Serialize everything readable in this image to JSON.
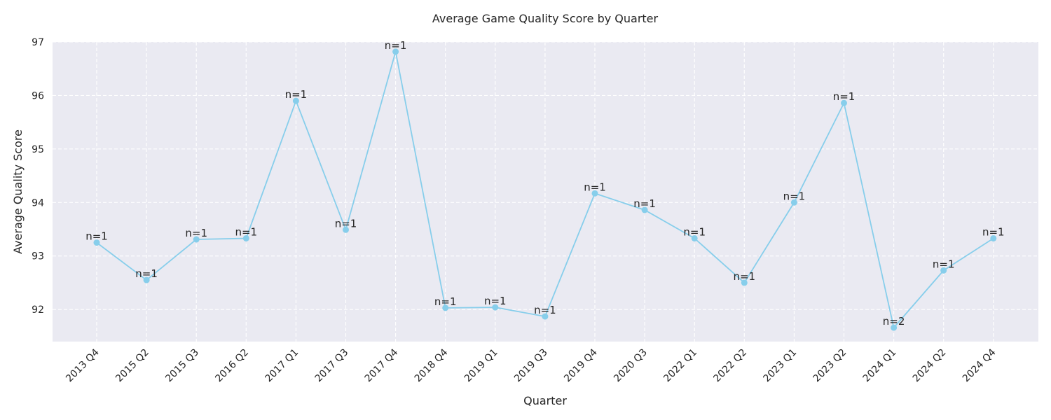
{
  "chart_data": {
    "type": "line",
    "title": "Average Game Quality Score by Quarter",
    "xlabel": "Quarter",
    "ylabel": "Average Quality Score",
    "ylim": [
      91.4,
      97.0
    ],
    "yticks": [
      92,
      93,
      94,
      95,
      96,
      97
    ],
    "grid": true,
    "line_color": "#87CEEB",
    "background_color": "#EAEAF2",
    "categories": [
      "2013 Q4",
      "2015 Q2",
      "2015 Q3",
      "2016 Q2",
      "2017 Q1",
      "2017 Q3",
      "2017 Q4",
      "2018 Q4",
      "2019 Q1",
      "2019 Q3",
      "2019 Q4",
      "2020 Q3",
      "2022 Q1",
      "2022 Q2",
      "2023 Q1",
      "2023 Q2",
      "2024 Q1",
      "2024 Q2",
      "2024 Q4"
    ],
    "values": [
      93.25,
      92.55,
      93.31,
      93.33,
      95.9,
      93.49,
      96.82,
      92.03,
      92.04,
      91.87,
      94.17,
      93.86,
      93.33,
      92.5,
      94.0,
      95.86,
      91.66,
      92.73,
      93.33
    ],
    "point_labels": [
      "n=1",
      "n=1",
      "n=1",
      "n=1",
      "n=1",
      "n=1",
      "n=1",
      "n=1",
      "n=1",
      "n=1",
      "n=1",
      "n=1",
      "n=1",
      "n=1",
      "n=1",
      "n=1",
      "n=2",
      "n=1",
      "n=1"
    ]
  }
}
